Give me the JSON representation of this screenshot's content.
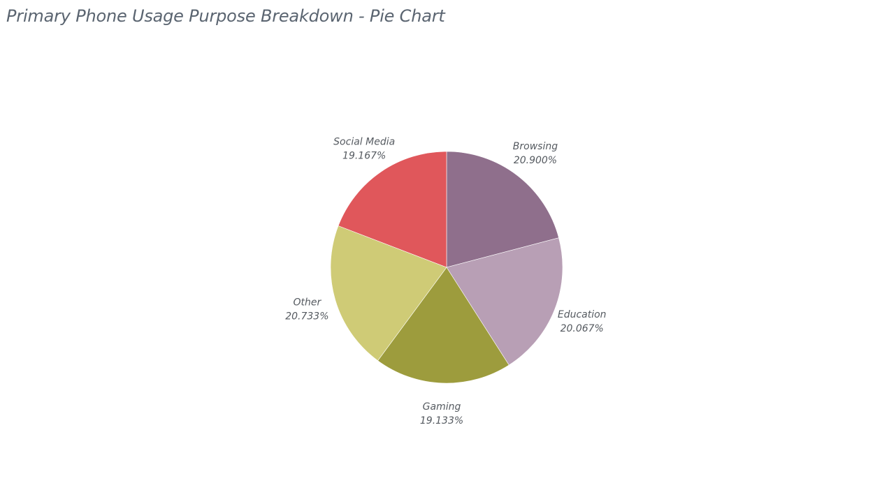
{
  "title": "Primary Phone Usage Purpose Breakdown - Pie Chart",
  "chart_data": {
    "type": "pie",
    "title": "Primary Phone Usage Purpose Breakdown - Pie Chart",
    "slices": [
      {
        "label": "Browsing",
        "value": 20.9,
        "display": "20.900%",
        "color": "#8f6f8c"
      },
      {
        "label": "Education",
        "value": 20.067,
        "display": "20.067%",
        "color": "#b89fb5"
      },
      {
        "label": "Gaming",
        "value": 19.133,
        "display": "19.133%",
        "color": "#9d9c3d"
      },
      {
        "label": "Other",
        "value": 20.733,
        "display": "20.733%",
        "color": "#cfcb76"
      },
      {
        "label": "Social Media",
        "value": 19.167,
        "display": "19.167%",
        "color": "#e0575b"
      }
    ],
    "start_angle": "12 o'clock",
    "direction": "clockwise",
    "legend": "none"
  }
}
